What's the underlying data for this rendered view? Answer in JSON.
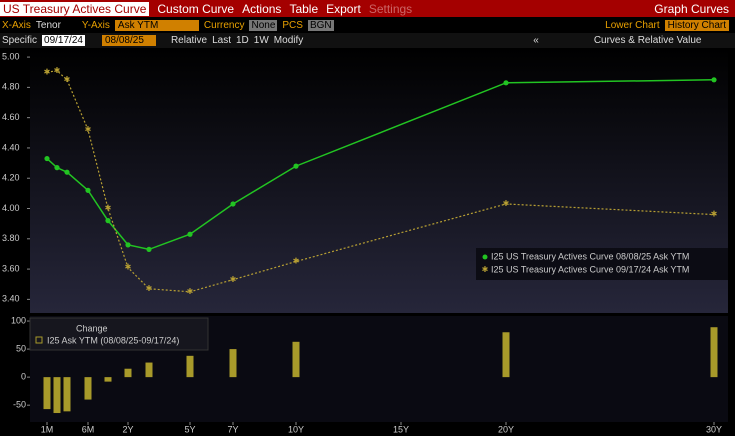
{
  "toolbar": {
    "title": "US Treasury Actives Curve",
    "menus": [
      "Custom Curve",
      "Actions",
      "Table",
      "Export",
      "Settings"
    ],
    "right": "Graph Curves"
  },
  "controls": {
    "x_axis_label": "X-Axis",
    "x_axis": "Tenor",
    "y_axis_label": "Y-Axis",
    "y_axis": "Ask YTM",
    "currency_label": "Currency",
    "currency": "None",
    "pcs_label": "PCS",
    "pcs": "BGN",
    "lower_chart_label": "Lower Chart",
    "lower_chart": "History Chart"
  },
  "dates": {
    "specific": "Specific",
    "date1": "09/17/24",
    "date2": "08/08/25",
    "buttons": [
      "Relative",
      "Last",
      "1D",
      "1W",
      "Modify"
    ],
    "collapse": "«",
    "panel": "Curves & Relative Value"
  },
  "chart_data": [
    {
      "type": "line",
      "ylim": [
        3.31,
        5.06
      ],
      "yticks": [
        {
          "value": 5,
          "label": "5.00"
        },
        {
          "value": 4.8,
          "label": "4.80"
        },
        {
          "value": 4.6,
          "label": "4.60"
        },
        {
          "value": 4.4,
          "label": "4.40"
        },
        {
          "value": 4.2,
          "label": "4.20"
        },
        {
          "value": 4,
          "label": "4.00"
        },
        {
          "value": 3.8,
          "label": "3.80"
        },
        {
          "value": 3.6,
          "label": "3.60"
        },
        {
          "value": 3.4,
          "label": "3.40"
        }
      ],
      "series": [
        {
          "name": "I25 US Treasury Actives Curve 08/08/25 Ask YTM",
          "color": "#22c422",
          "values": [
            4.33,
            4.27,
            4.24,
            4.12,
            3.92,
            3.76,
            3.73,
            3.83,
            4.03,
            4.28,
            4.83,
            4.85
          ]
        },
        {
          "name": "I25 US Treasury Actives Curve 09/17/24 Ask YTM",
          "color": "#b8a033",
          "values": [
            4.9,
            4.91,
            4.85,
            4.52,
            4.0,
            3.61,
            3.47,
            3.45,
            3.53,
            3.65,
            4.03,
            3.96
          ]
        }
      ]
    },
    {
      "type": "bar",
      "title": "Change",
      "series_name": "I25 Ask YTM (08/08/25-09/17/24)",
      "color": "#a89a2a",
      "ylim": [
        -80,
        109
      ],
      "yticks": [
        100,
        50,
        0,
        -50
      ],
      "categories": [
        "1M",
        null,
        null,
        "6M",
        null,
        "2Y",
        null,
        "5Y",
        "7Y",
        "10Y",
        "15Y",
        "20Y",
        "30Y"
      ],
      "values": [
        -57,
        -64,
        -61,
        -40,
        -8,
        15,
        26,
        38,
        50,
        63,
        null,
        80,
        89
      ]
    }
  ]
}
